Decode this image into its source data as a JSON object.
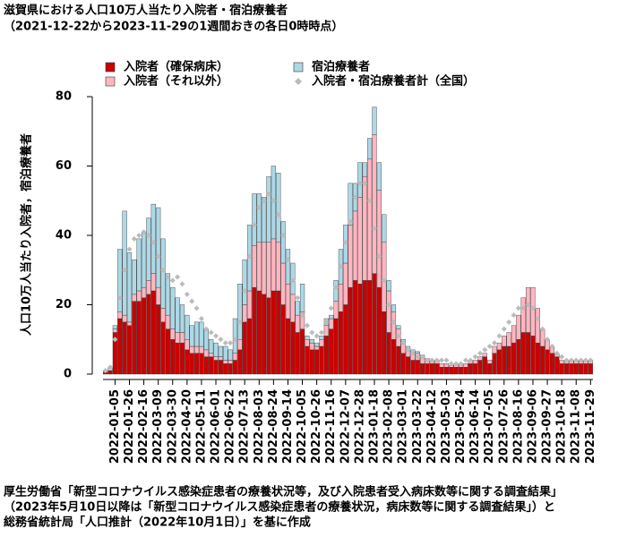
{
  "chart_data": {
    "type": "bar",
    "stacked": true,
    "title": "滋賀県における人口10万人当たり入院者・宿泊療養者",
    "subtitle": "（2021-12-22から2023-11-29の1週間おきの各日0時時点）",
    "y_label": "人口10万人当たり入院者，宿泊療養者",
    "source": [
      "厚生労働省「新型コロナウイルス感染症患者の療養状況等，及び入院患者受入病床数等に関する調査結果」",
      "（2023年5月10日以降は「新型コロナウイルス感染症患者の療養状況，病床数等に関する調査結果」）と",
      "総務省統計局「人口推計（2022年10月1日）」を基に作成"
    ],
    "ylim": [
      0,
      80
    ],
    "yticks": [
      0,
      20,
      40,
      60,
      80
    ],
    "categories": [
      null,
      null,
      "2022-01-05",
      null,
      null,
      "2022-01-26",
      null,
      null,
      "2022-02-16",
      null,
      null,
      "2022-03-09",
      null,
      null,
      "2022-03-30",
      null,
      null,
      "2022-04-20",
      null,
      null,
      "2022-05-11",
      null,
      null,
      "2022-06-01",
      null,
      null,
      "2022-06-22",
      null,
      null,
      "2022-07-13",
      null,
      null,
      "2022-08-03",
      null,
      null,
      "2022-08-24",
      null,
      null,
      "2022-09-14",
      null,
      null,
      "2022-10-05",
      null,
      null,
      "2022-10-26",
      null,
      null,
      "2022-11-16",
      null,
      null,
      "2022-12-07",
      null,
      null,
      "2022-12-28",
      null,
      null,
      "2023-01-18",
      null,
      null,
      "2023-02-08",
      null,
      null,
      "2023-03-01",
      null,
      null,
      "2023-03-22",
      null,
      null,
      "2023-04-12",
      null,
      null,
      "2023-05-03",
      null,
      null,
      "2023-05-24",
      null,
      null,
      "2023-06-14",
      null,
      null,
      "2023-07-05",
      null,
      null,
      "2023-07-26",
      null,
      null,
      "2023-08-16",
      null,
      null,
      "2023-09-06",
      null,
      null,
      "2023-09-27",
      null,
      null,
      "2023-10-18",
      null,
      null,
      "2023-11-08",
      null,
      null,
      "2023-11-29"
    ],
    "series": [
      {
        "name": "入院者（確保病床）",
        "color": "#cc0000",
        "values": [
          0.5,
          1,
          12,
          16,
          15,
          14,
          21,
          21,
          22,
          23,
          24,
          20,
          15,
          13,
          10,
          9,
          9,
          7,
          6,
          6,
          6,
          5,
          5,
          4,
          4,
          3,
          3,
          4,
          7,
          15,
          16,
          25,
          24,
          23,
          22,
          24,
          24,
          20,
          16,
          15,
          12,
          13,
          8,
          7,
          7,
          8,
          11,
          13,
          16,
          18,
          20,
          25,
          27,
          26,
          27,
          27,
          29,
          25,
          18,
          12,
          10,
          8,
          6,
          5,
          4,
          4,
          3,
          3,
          3,
          3,
          2,
          2,
          2,
          2,
          2,
          2,
          3,
          3,
          4,
          5,
          3,
          6,
          7,
          8,
          8,
          9,
          10,
          12,
          12,
          11,
          9,
          8,
          7,
          6,
          5,
          3,
          3,
          3,
          3,
          3,
          3,
          3
        ]
      },
      {
        "name": "入院者（それ以外）",
        "color": "#ffb6c1",
        "values": [
          0,
          0,
          1,
          2,
          2,
          1,
          2,
          3,
          3,
          4,
          5,
          5,
          4,
          4,
          3,
          3,
          3,
          3,
          2,
          2,
          2,
          2,
          1,
          1,
          1,
          1,
          1,
          2,
          3,
          5,
          8,
          12,
          14,
          15,
          16,
          15,
          14,
          12,
          10,
          8,
          5,
          5,
          2,
          2,
          1,
          2,
          3,
          3,
          5,
          8,
          12,
          18,
          20,
          25,
          30,
          35,
          40,
          28,
          20,
          12,
          8,
          5,
          3,
          2,
          2,
          2,
          2,
          1,
          1,
          1,
          1,
          1,
          0.5,
          1,
          1,
          1,
          1,
          1,
          1,
          1,
          1,
          2,
          2,
          3,
          4,
          5,
          7,
          10,
          13,
          14,
          10,
          5,
          3,
          2,
          1,
          1,
          1,
          1,
          1,
          1,
          1,
          1
        ]
      },
      {
        "name": "宿泊療養者",
        "color": "#add8e6",
        "values": [
          0.5,
          1,
          1,
          18,
          30,
          20,
          10,
          15,
          16,
          18,
          20,
          23,
          20,
          12,
          12,
          10,
          8,
          7,
          6,
          7,
          7,
          6,
          4,
          4,
          3,
          4,
          3,
          10,
          16,
          13,
          19,
          15,
          14,
          13,
          19,
          21,
          20,
          12,
          10,
          9,
          4,
          8,
          1,
          1,
          1,
          1,
          2,
          1,
          6,
          10,
          11,
          12,
          8,
          10,
          4,
          6,
          8,
          8,
          8,
          3,
          2,
          1,
          1,
          1,
          1,
          0.5,
          0.5,
          0.5,
          0,
          0,
          0,
          0,
          0,
          0,
          0,
          0,
          0,
          0,
          0,
          0,
          0,
          0,
          0,
          0,
          0,
          0,
          0,
          0,
          0,
          0,
          0,
          0,
          0,
          0,
          0,
          0,
          0,
          0,
          0,
          0,
          0,
          0
        ]
      },
      {
        "name": "入院者・宿泊療養者計（全国）",
        "color": "#bbbbbb",
        "type": "scatter",
        "values": [
          1,
          2,
          10,
          22,
          30,
          36,
          39,
          40,
          41,
          40,
          38,
          34,
          30,
          28,
          27,
          28,
          26,
          23,
          21,
          19,
          16,
          13,
          12,
          11,
          10,
          9,
          9,
          10,
          15,
          24,
          34,
          43,
          48,
          50,
          52,
          50,
          46,
          40,
          33,
          27,
          22,
          17,
          14,
          12,
          11,
          12,
          15,
          19,
          25,
          31,
          38,
          44,
          51,
          55,
          55,
          50,
          42,
          34,
          27,
          20,
          15,
          11,
          9,
          7,
          6,
          5,
          5,
          4,
          4,
          4,
          4,
          4,
          3,
          3,
          3,
          4,
          4,
          5,
          6,
          7,
          8,
          9,
          11,
          13,
          15,
          17,
          19,
          19,
          20,
          19,
          16,
          13,
          10,
          8,
          6,
          5,
          4,
          4,
          4,
          4,
          4,
          4
        ]
      }
    ]
  }
}
